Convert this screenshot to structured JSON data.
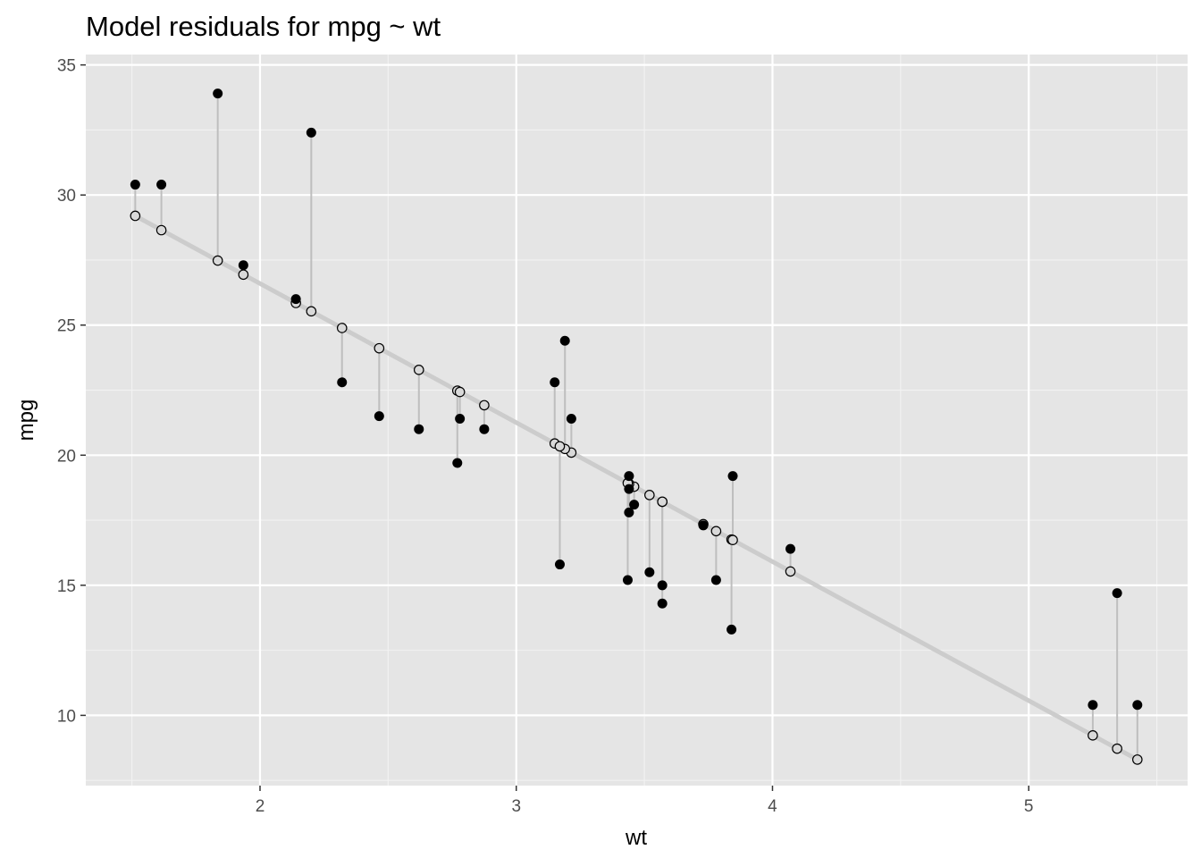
{
  "chart_data": {
    "type": "scatter",
    "title": "Model residuals for mpg ~ wt",
    "xlabel": "wt",
    "ylabel": "mpg",
    "xlim": [
      1.32,
      5.62
    ],
    "ylim": [
      7.3,
      35.4
    ],
    "xticks": [
      2,
      3,
      4,
      5
    ],
    "yticks": [
      10,
      15,
      20,
      25,
      30,
      35
    ],
    "grid": true,
    "legend": "none",
    "fit_line": {
      "intercept": 37.285,
      "slope": -5.344,
      "x_range": [
        1.513,
        5.424
      ]
    },
    "observed": {
      "wt": [
        2.62,
        2.875,
        2.32,
        3.215,
        3.44,
        3.46,
        3.57,
        3.19,
        3.15,
        3.44,
        3.44,
        4.07,
        3.73,
        3.78,
        5.25,
        5.424,
        5.345,
        2.2,
        1.615,
        1.835,
        2.465,
        3.52,
        3.435,
        3.84,
        3.845,
        1.935,
        2.14,
        1.513,
        3.17,
        2.77,
        3.57,
        2.78
      ],
      "mpg": [
        21.0,
        21.0,
        22.8,
        21.4,
        18.7,
        18.1,
        14.3,
        24.4,
        22.8,
        19.2,
        17.8,
        16.4,
        17.3,
        15.2,
        10.4,
        10.4,
        14.7,
        32.4,
        30.4,
        33.9,
        21.5,
        15.5,
        15.2,
        13.3,
        19.2,
        27.3,
        26.0,
        30.4,
        15.8,
        19.7,
        15.0,
        21.4
      ]
    },
    "predicted": {
      "wt": [
        2.62,
        2.875,
        2.32,
        3.215,
        3.44,
        3.46,
        3.57,
        3.19,
        3.15,
        3.44,
        3.44,
        4.07,
        3.73,
        3.78,
        5.25,
        5.424,
        5.345,
        2.2,
        1.615,
        1.835,
        2.465,
        3.52,
        3.435,
        3.84,
        3.845,
        1.935,
        2.14,
        1.513,
        3.17,
        2.77,
        3.57,
        2.78
      ],
      "mpg": [
        23.28,
        21.92,
        24.89,
        20.1,
        18.9,
        18.79,
        18.21,
        20.24,
        20.45,
        18.9,
        18.9,
        15.53,
        17.35,
        17.08,
        9.23,
        8.3,
        8.72,
        25.53,
        28.65,
        27.48,
        24.11,
        18.47,
        18.93,
        16.76,
        16.74,
        26.94,
        25.85,
        29.2,
        20.34,
        22.48,
        18.21,
        22.43
      ]
    }
  },
  "colors": {
    "panel": "#e5e5e5",
    "grid_major": "#ffffff",
    "grid_minor": "#f2f2f2",
    "fit_line": "#cccccc",
    "segment": "#bebebe",
    "observed_point": "#000000",
    "predicted_fill": "#d9d9d9",
    "predicted_stroke": "#000000"
  }
}
